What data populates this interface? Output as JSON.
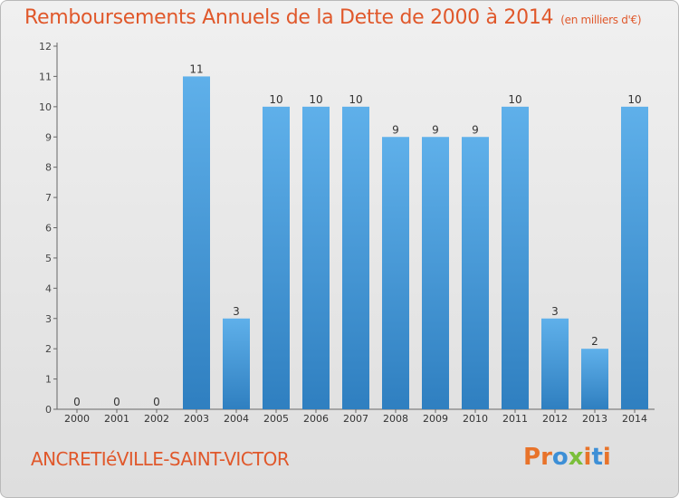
{
  "header": {
    "title": "Remboursements Annuels de la Dette de 2000 à 2014",
    "unit": "(en milliers d'€)"
  },
  "footer": {
    "commune": "ANCRETIéVILLE-SAINT-VICTOR",
    "logo_text": "Proxiti",
    "logo_colors": [
      "#e8732a",
      "#e8732a",
      "#3d8fd6",
      "#7bbf3a",
      "#e8732a",
      "#3d8fd6",
      "#e8732a"
    ]
  },
  "colors": {
    "title": "#e0582b",
    "bar_top": "#5fb0ea",
    "bar_bottom": "#2f7fc0"
  },
  "chart_data": {
    "type": "bar",
    "title": "Remboursements Annuels de la Dette de 2000 à 2014",
    "xlabel": "",
    "ylabel": "",
    "ylim": [
      0,
      12
    ],
    "yticks": [
      0,
      1,
      2,
      3,
      4,
      5,
      6,
      7,
      8,
      9,
      10,
      11,
      12
    ],
    "categories": [
      "2000",
      "2001",
      "2002",
      "2003",
      "2004",
      "2005",
      "2006",
      "2007",
      "2008",
      "2009",
      "2010",
      "2011",
      "2012",
      "2013",
      "2014"
    ],
    "values": [
      0,
      0,
      0,
      11,
      3,
      10,
      10,
      10,
      9,
      9,
      9,
      10,
      3,
      2,
      10
    ],
    "data_labels": [
      "0",
      "0",
      "0",
      "11",
      "3",
      "10",
      "10",
      "10",
      "9",
      "9",
      "9",
      "10",
      "3",
      "2",
      "10"
    ],
    "grid": false,
    "legend": "none"
  }
}
